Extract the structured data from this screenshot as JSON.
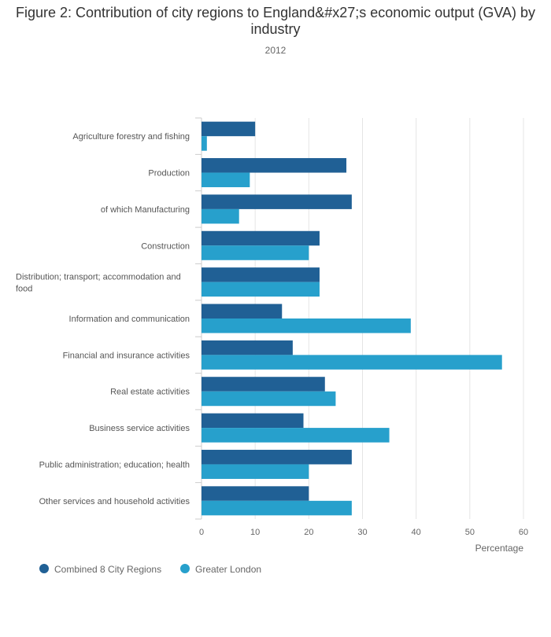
{
  "chart_data": {
    "type": "bar",
    "orientation": "horizontal",
    "title": "Figure 2: Contribution of city regions to England&#x27;s economic output (GVA) by industry",
    "subtitle": "2012",
    "xlabel": "Percentage",
    "ylabel": "",
    "xlim": [
      0,
      60
    ],
    "xticks": [
      0,
      10,
      20,
      30,
      40,
      50,
      60
    ],
    "grid": true,
    "legend": "bottom-left",
    "categories": [
      "Agriculture forestry and fishing",
      "Production",
      "of which Manufacturing",
      "Construction",
      "Distribution; transport; accommodation and food",
      "Information and communication",
      "Financial and insurance activities",
      "Real estate activities",
      "Business service activities",
      "Public administration; education; health",
      "Other services and household activities"
    ],
    "series": [
      {
        "name": "Combined 8 City Regions",
        "color": "#206095",
        "values": [
          10,
          27,
          28,
          22,
          22,
          15,
          17,
          23,
          19,
          28,
          20
        ]
      },
      {
        "name": "Greater London",
        "color": "#27a0cc",
        "values": [
          1,
          9,
          7,
          20,
          22,
          39,
          56,
          25,
          35,
          20,
          28
        ]
      }
    ]
  }
}
